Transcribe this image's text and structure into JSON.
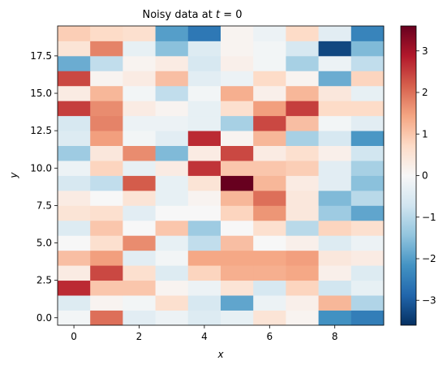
{
  "chart_data": {
    "type": "heatmap",
    "title_prefix": "Noisy data at ",
    "title_math": "t",
    "title_suffix": " = 0",
    "xlabel": "x",
    "ylabel": "y",
    "x": [
      0,
      1,
      2,
      3,
      4,
      5,
      6,
      7,
      8,
      9
    ],
    "y": [
      0,
      1,
      2,
      3,
      4,
      5,
      6,
      7,
      8,
      9,
      10,
      11,
      12,
      13,
      14,
      15,
      16,
      17,
      18,
      19
    ],
    "xlim": [
      -0.5,
      9.5
    ],
    "ylim": [
      -0.5,
      19.5
    ],
    "x_ticks": [
      0,
      2,
      4,
      6,
      8
    ],
    "y_ticks": [
      0.0,
      2.5,
      5.0,
      7.5,
      10.0,
      12.5,
      15.0,
      17.5
    ],
    "y_tick_labels": [
      "0.0",
      "2.5",
      "5.0",
      "7.5",
      "10.0",
      "12.5",
      "15.0",
      "17.5"
    ],
    "colormap": "RdBu_r",
    "colorbar": {
      "vmin": -3.6,
      "vmax": 3.6,
      "ticks": [
        -3,
        -2,
        -1,
        0,
        1,
        2,
        3
      ],
      "tick_labels": [
        "−3",
        "−2",
        "−1",
        "0",
        "1",
        "2",
        "3"
      ],
      "placement": "right"
    },
    "grid": false,
    "values": [
      [
        -0.1,
        2.0,
        -0.4,
        -0.2,
        -0.5,
        -0.3,
        0.5,
        0.1,
        -2.2,
        -2.5
      ],
      [
        -0.5,
        0.1,
        -0.1,
        0.6,
        -0.6,
        -1.9,
        -0.2,
        0.2,
        1.2,
        -1.1
      ],
      [
        2.7,
        1.0,
        1.0,
        0.1,
        -0.2,
        0.5,
        -0.6,
        0.8,
        -0.7,
        -0.3
      ],
      [
        0.3,
        2.4,
        0.6,
        -0.5,
        0.8,
        1.3,
        1.3,
        1.4,
        0.2,
        -0.5
      ],
      [
        1.1,
        1.5,
        -0.4,
        -0.1,
        1.4,
        1.4,
        1.4,
        1.5,
        0.4,
        0.3
      ],
      [
        0.0,
        0.6,
        1.7,
        -0.3,
        -0.9,
        1.1,
        0.0,
        0.2,
        -0.5,
        -0.2
      ],
      [
        -0.5,
        1.0,
        0.0,
        1.0,
        -1.3,
        0.0,
        0.6,
        -1.0,
        0.8,
        0.6
      ],
      [
        0.5,
        0.6,
        -0.4,
        0.0,
        0.0,
        0.8,
        1.6,
        0.4,
        -1.3,
        -1.9
      ],
      [
        0.3,
        0.0,
        0.5,
        -0.3,
        0.1,
        1.2,
        2.0,
        0.4,
        -1.6,
        -1.0
      ],
      [
        -0.6,
        -0.9,
        2.2,
        -0.3,
        0.5,
        3.6,
        1.2,
        0.3,
        -0.4,
        -1.5
      ],
      [
        -0.2,
        0.8,
        -0.3,
        0.3,
        2.6,
        1.0,
        1.0,
        0.9,
        -0.4,
        -1.2
      ],
      [
        -1.3,
        0.4,
        1.7,
        -1.6,
        0.3,
        2.4,
        0.3,
        0.6,
        0.2,
        -0.7
      ],
      [
        -0.5,
        1.5,
        -0.1,
        -0.4,
        2.7,
        0.1,
        1.2,
        -1.2,
        -0.6,
        -2.1
      ],
      [
        -0.6,
        1.8,
        -0.2,
        -0.2,
        -0.3,
        -1.2,
        2.4,
        1.1,
        -0.1,
        -0.4
      ],
      [
        2.5,
        1.7,
        0.3,
        0.1,
        -0.3,
        0.6,
        1.5,
        2.5,
        0.7,
        0.7
      ],
      [
        0.3,
        1.2,
        -0.1,
        -0.9,
        -0.1,
        1.3,
        0.2,
        1.2,
        0.4,
        -0.3
      ],
      [
        2.4,
        0.1,
        0.3,
        1.1,
        -0.4,
        -0.2,
        0.7,
        0.1,
        -1.8,
        0.8
      ],
      [
        -1.8,
        -0.9,
        0.1,
        0.3,
        -0.6,
        0.2,
        -0.1,
        -1.2,
        -0.2,
        -0.9
      ],
      [
        0.5,
        1.8,
        -0.3,
        -1.5,
        -0.5,
        0.1,
        -0.1,
        -0.6,
        -3.3,
        -1.6
      ],
      [
        0.9,
        0.7,
        0.6,
        -2.0,
        -2.6,
        0.1,
        -0.2,
        0.7,
        -0.4,
        -2.4
      ]
    ]
  }
}
